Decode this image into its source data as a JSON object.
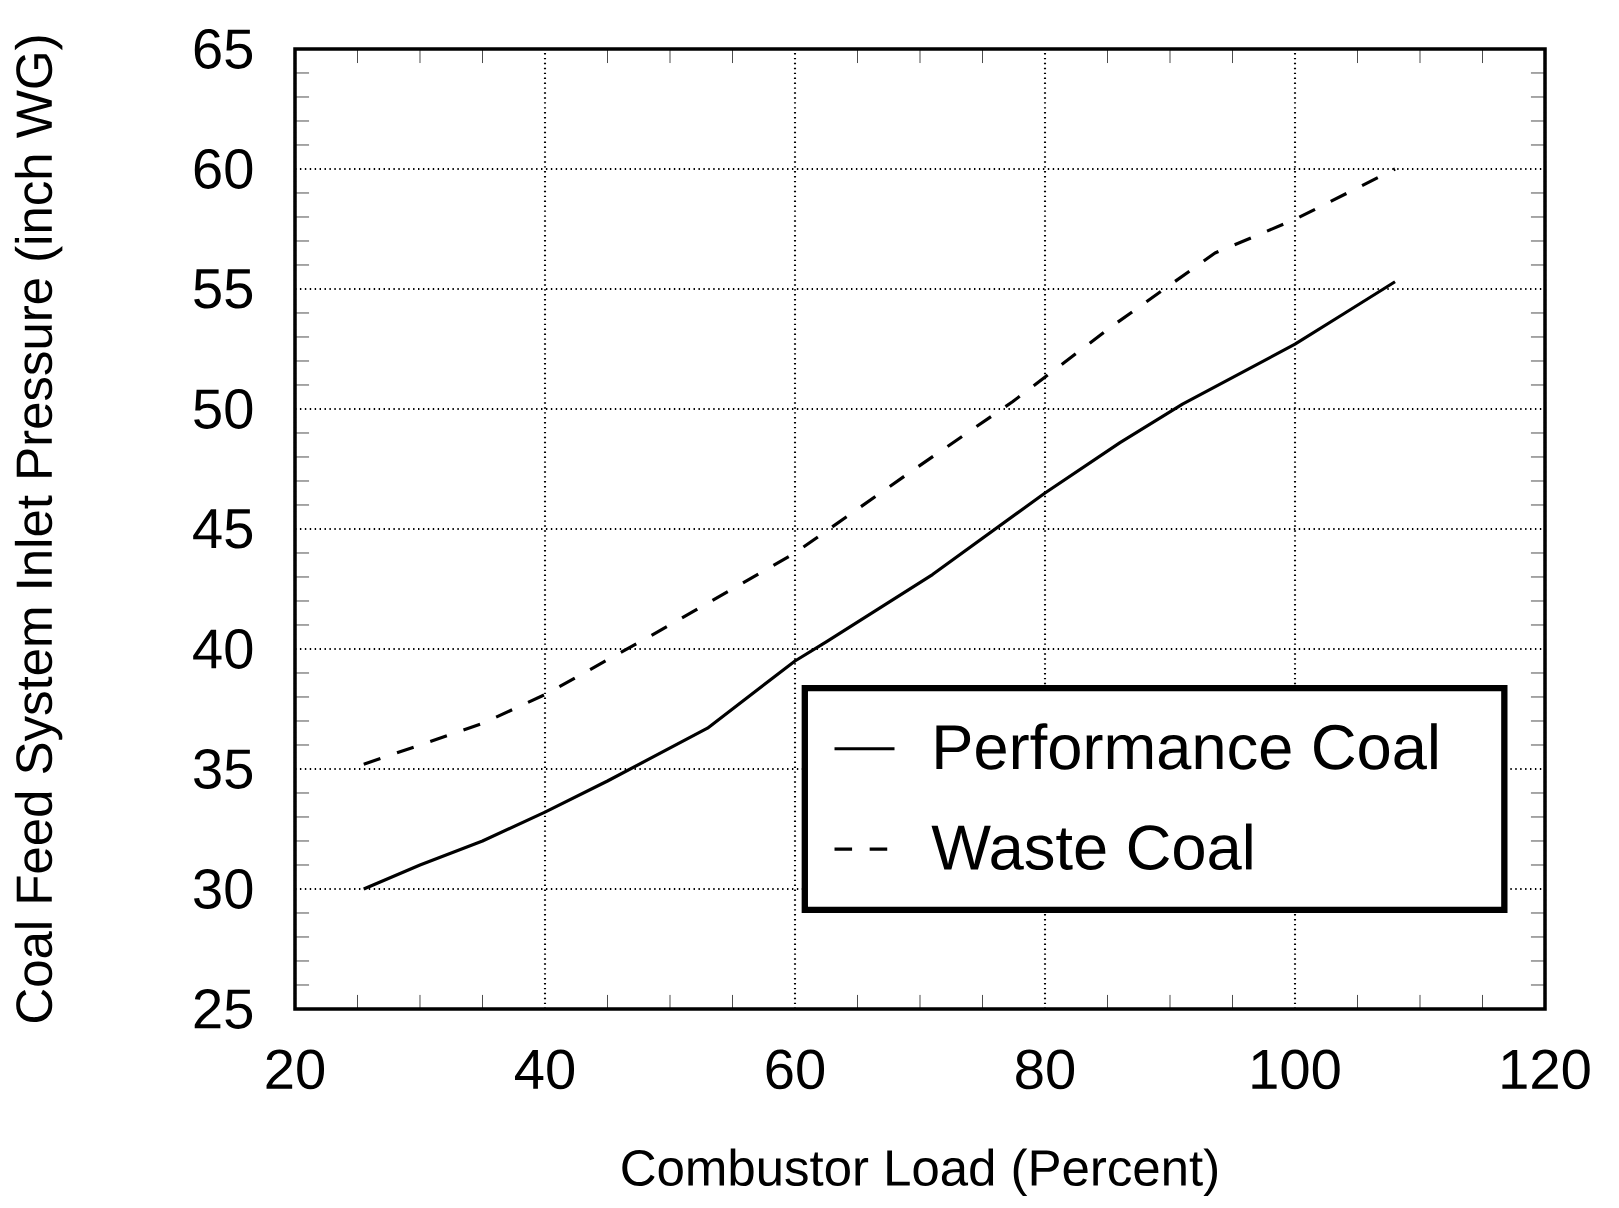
{
  "chart_data": {
    "type": "line",
    "xlabel": "Combustor Load (Percent)",
    "ylabel": "Coal Feed System Inlet Pressure (inch WG)",
    "xlim": [
      20,
      120
    ],
    "ylim": [
      25,
      65
    ],
    "xticks": [
      20,
      40,
      60,
      80,
      100,
      120
    ],
    "yticks": [
      25,
      30,
      35,
      40,
      45,
      50,
      55,
      60,
      65
    ],
    "grid": true,
    "legend": "bottom right",
    "marker": "none",
    "series": [
      {
        "name": "Performance Coal",
        "color": "#000000",
        "line_style": "solid",
        "x": [
          25.5,
          30,
          35,
          40,
          45,
          53,
          60,
          62.5,
          71,
          80,
          86,
          91,
          100,
          104,
          108
        ],
        "values": [
          30,
          31,
          32,
          33.2,
          34.5,
          36.7,
          39.5,
          40.3,
          43.1,
          46.5,
          48.6,
          50.2,
          52.7,
          54,
          55.3
        ]
      },
      {
        "name": "Waste Coal",
        "color": "#000000",
        "line_style": "dashed",
        "x": [
          25.5,
          30,
          35,
          40,
          48.3,
          60,
          69.3,
          77.4,
          85.5,
          93.6,
          100,
          108
        ],
        "values": [
          35.2,
          36,
          36.9,
          38.1,
          40.5,
          44,
          47.4,
          50.3,
          53.5,
          56.5,
          57.9,
          60
        ]
      }
    ]
  }
}
